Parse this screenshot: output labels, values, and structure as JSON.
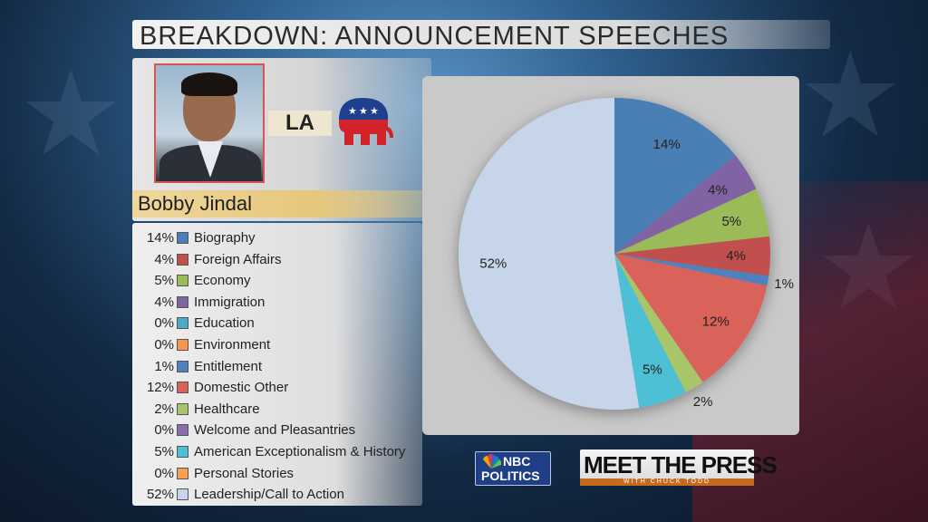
{
  "title": "BREAKDOWN: ANNOUNCEMENT SPEECHES",
  "candidate": {
    "name": "Bobby Jindal",
    "state": "LA",
    "party_logo": "gop-elephant-icon"
  },
  "logos": {
    "nbc_line1": "NBC",
    "nbc_line2": "POLITICS",
    "mtp_main": "MEET THE PRESS",
    "mtp_sub": "WITH CHUCK TODD"
  },
  "colors": {
    "Biography": "#4a7fb5",
    "Foreign Affairs": "#c0504d",
    "Economy": "#9bbb59",
    "Immigration": "#8064a2",
    "Education": "#4bacc6",
    "Environment": "#f79646",
    "Entitlement": "#4f81bd",
    "Domestic Other": "#d9625a",
    "Healthcare": "#a9c56a",
    "Welcome and Pleasantries": "#8a6bb0",
    "American Exceptionalism & History": "#4ec0d6",
    "Personal Stories": "#f7a050",
    "Leadership/Call to Action": "#c6d5ea"
  },
  "chart_data": {
    "type": "pie",
    "categories": [
      "Biography",
      "Foreign Affairs",
      "Economy",
      "Immigration",
      "Education",
      "Environment",
      "Entitlement",
      "Domestic Other",
      "Healthcare",
      "Welcome and Pleasantries",
      "American Exceptionalism & History",
      "Personal Stories",
      "Leadership/Call to Action"
    ],
    "values": [
      14,
      4,
      5,
      4,
      0,
      0,
      1,
      12,
      2,
      0,
      5,
      0,
      52
    ],
    "labels": [
      "14%",
      "4%",
      "5%",
      "4%",
      "0%",
      "0%",
      "1%",
      "12%",
      "2%",
      "0%",
      "5%",
      "0%",
      "52%"
    ],
    "slice_labels": {
      "Biography": "14%",
      "Immigration": "4%",
      "Economy": "5%",
      "Foreign Affairs": "4%",
      "Entitlement": "1%",
      "Domestic Other": "12%",
      "Healthcare": "2%",
      "American Exceptionalism & History": "5%",
      "Leadership/Call to Action": "52%"
    },
    "draw_order": [
      "Biography",
      "Immigration",
      "Economy",
      "Foreign Affairs",
      "Entitlement",
      "Domestic Other",
      "Healthcare",
      "American Exceptionalism & History",
      "Leadership/Call to Action"
    ],
    "legend_position": "left"
  }
}
